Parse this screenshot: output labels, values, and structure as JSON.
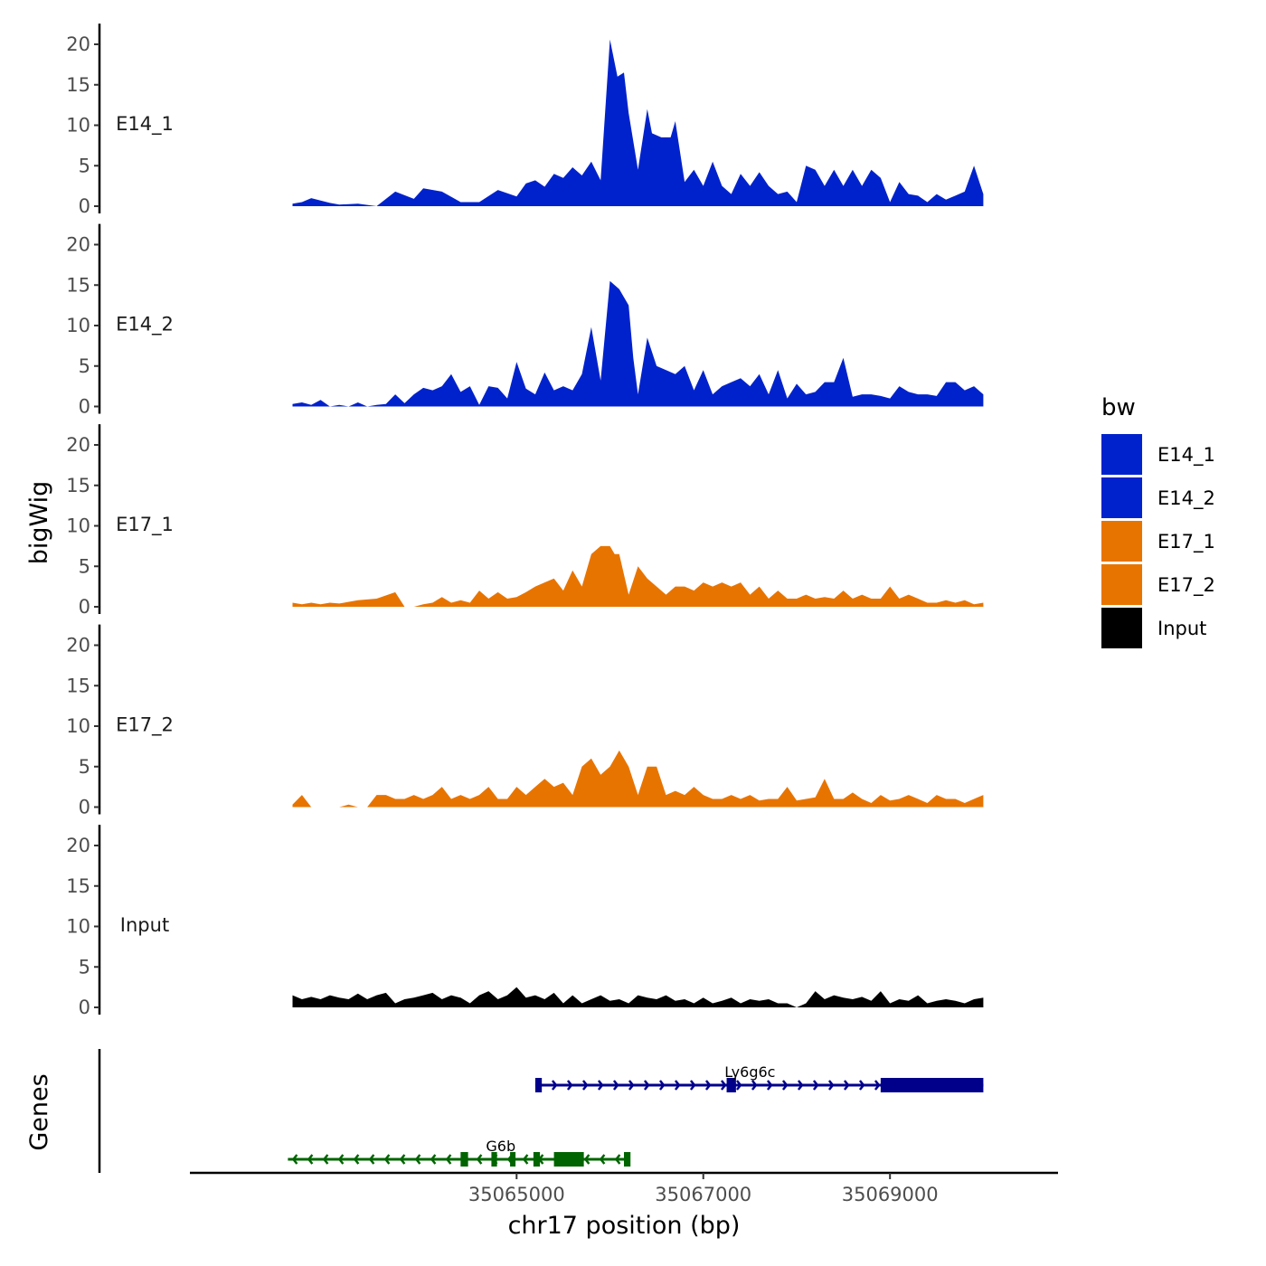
{
  "chart_data": {
    "type": "area",
    "ylabel": "bigWig",
    "xlabel": "chr17 position (bp)",
    "y_ticks": [
      0,
      5,
      10,
      15,
      20
    ],
    "ylim": [
      0,
      22
    ],
    "xlim": [
      35061500,
      35070800
    ],
    "x_ticks": [
      35065000,
      35067000,
      35069000
    ],
    "x_tick_labels": [
      "35065000",
      "35067000",
      "35069000"
    ],
    "colors": {
      "E14_1": "#0022CC",
      "E14_2": "#0022CC",
      "E17_1": "#E87400",
      "E17_2": "#E87400",
      "Input": "#000000"
    },
    "tracks": [
      {
        "name": "E14_1",
        "x": [
          35062600,
          35062700,
          35062800,
          35063000,
          35063100,
          35063300,
          35063500,
          35063700,
          35063900,
          35064000,
          35064200,
          35064400,
          35064600,
          35064800,
          35065000,
          35065100,
          35065200,
          35065300,
          35065400,
          35065500,
          35065600,
          35065700,
          35065800,
          35065900,
          35066000,
          35066080,
          35066150,
          35066200,
          35066300,
          35066400,
          35066450,
          35066550,
          35066650,
          35066700,
          35066800,
          35066900,
          35067000,
          35067100,
          35067200,
          35067300,
          35067400,
          35067500,
          35067600,
          35067700,
          35067800,
          35067900,
          35068000,
          35068100,
          35068200,
          35068300,
          35068400,
          35068500,
          35068600,
          35068700,
          35068800,
          35068900,
          35069000,
          35069100,
          35069200,
          35069300,
          35069400,
          35069500,
          35069600,
          35069700,
          35069800,
          35069900,
          35070000
        ],
        "y": [
          0.3,
          0.5,
          1,
          0.4,
          0.2,
          0.3,
          0,
          1.8,
          0.9,
          2.2,
          1.8,
          0.5,
          0.5,
          2,
          1.2,
          2.8,
          3.2,
          2.4,
          4,
          3.5,
          4.8,
          3.8,
          5.5,
          3.2,
          20.6,
          16,
          16.5,
          11.5,
          4.5,
          12,
          9,
          8.5,
          8.5,
          10.5,
          3,
          4.5,
          2.5,
          5.5,
          2.5,
          1.5,
          4,
          2.5,
          4.2,
          2.5,
          1.5,
          1.8,
          0.5,
          5,
          4.5,
          2.5,
          4.5,
          2.5,
          4.5,
          2.5,
          4.5,
          3.5,
          0.5,
          3,
          1.5,
          1.3,
          0.5,
          1.5,
          0.8,
          1.3,
          1.8,
          5,
          1.5
        ]
      },
      {
        "name": "E14_2",
        "x": [
          35062600,
          35062700,
          35062800,
          35062900,
          35063000,
          35063100,
          35063200,
          35063300,
          35063400,
          35063500,
          35063600,
          35063700,
          35063800,
          35063900,
          35064000,
          35064100,
          35064200,
          35064300,
          35064400,
          35064500,
          35064600,
          35064700,
          35064800,
          35064900,
          35065000,
          35065100,
          35065200,
          35065300,
          35065400,
          35065500,
          35065600,
          35065700,
          35065800,
          35065900,
          35066000,
          35066100,
          35066200,
          35066250,
          35066300,
          35066400,
          35066500,
          35066600,
          35066700,
          35066800,
          35066900,
          35067000,
          35067100,
          35067200,
          35067300,
          35067400,
          35067500,
          35067600,
          35067700,
          35067800,
          35067900,
          35068000,
          35068100,
          35068200,
          35068300,
          35068400,
          35068500,
          35068600,
          35068700,
          35068800,
          35068900,
          35069000,
          35069100,
          35069200,
          35069300,
          35069400,
          35069500,
          35069600,
          35069700,
          35069800,
          35069900,
          35070000
        ],
        "y": [
          0.3,
          0.5,
          0.2,
          0.8,
          0,
          0.2,
          0,
          0.5,
          0,
          0.2,
          0.3,
          1.5,
          0.4,
          1.5,
          2.3,
          2,
          2.5,
          4,
          1.8,
          2.5,
          0.2,
          2.5,
          2.3,
          1,
          5.5,
          2.2,
          1.5,
          4.2,
          2,
          2.5,
          2,
          4,
          9.8,
          3.2,
          15.5,
          14.5,
          12.5,
          6,
          1.5,
          8.5,
          5,
          4.5,
          4,
          5,
          2,
          4.5,
          1.5,
          2.5,
          3,
          3.5,
          2.5,
          4,
          1.5,
          4.5,
          1,
          2.8,
          1.5,
          1.8,
          3,
          3,
          6,
          1.2,
          1.5,
          1.5,
          1.3,
          1,
          2.5,
          1.8,
          1.5,
          1.5,
          1.3,
          3,
          3,
          2,
          2.5,
          1.5
        ]
      },
      {
        "name": "E17_1",
        "x": [
          35062600,
          35062700,
          35062800,
          35062900,
          35063000,
          35063100,
          35063300,
          35063500,
          35063700,
          35063800,
          35063900,
          35064000,
          35064100,
          35064200,
          35064300,
          35064400,
          35064500,
          35064600,
          35064700,
          35064800,
          35064900,
          35065000,
          35065100,
          35065200,
          35065300,
          35065400,
          35065500,
          35065600,
          35065700,
          35065800,
          35065900,
          35066000,
          35066050,
          35066100,
          35066150,
          35066200,
          35066300,
          35066400,
          35066500,
          35066600,
          35066700,
          35066800,
          35066900,
          35067000,
          35067100,
          35067200,
          35067300,
          35067400,
          35067500,
          35067600,
          35067700,
          35067800,
          35067900,
          35068000,
          35068100,
          35068200,
          35068300,
          35068400,
          35068500,
          35068600,
          35068700,
          35068800,
          35068900,
          35069000,
          35069100,
          35069200,
          35069300,
          35069400,
          35069500,
          35069600,
          35069700,
          35069800,
          35069900,
          35070000
        ],
        "y": [
          0.5,
          0.3,
          0.5,
          0.3,
          0.5,
          0.4,
          0.8,
          1,
          1.8,
          0,
          0,
          0.3,
          0.5,
          1.2,
          0.5,
          0.8,
          0.5,
          2,
          1,
          1.8,
          1,
          1.2,
          1.8,
          2.5,
          3,
          3.5,
          2,
          4.5,
          2.5,
          6.5,
          7.5,
          7.5,
          6.5,
          6.5,
          4,
          1.5,
          5,
          3.5,
          2.5,
          1.5,
          2.5,
          2.5,
          2,
          3,
          2.5,
          3,
          2.5,
          3,
          1.5,
          2.5,
          1,
          2,
          1,
          1,
          1.5,
          1,
          1.2,
          1,
          2,
          1,
          1.5,
          1,
          1,
          2.5,
          1,
          1.5,
          1,
          0.5,
          0.5,
          0.8,
          0.5,
          0.8,
          0.3,
          0.5
        ]
      },
      {
        "name": "E17_2",
        "x": [
          35062600,
          35062700,
          35062800,
          35062900,
          35063000,
          35063100,
          35063200,
          35063300,
          35063400,
          35063500,
          35063600,
          35063700,
          35063800,
          35063900,
          35064000,
          35064100,
          35064200,
          35064300,
          35064400,
          35064500,
          35064600,
          35064700,
          35064800,
          35064900,
          35065000,
          35065100,
          35065200,
          35065300,
          35065400,
          35065500,
          35065600,
          35065700,
          35065800,
          35065900,
          35066000,
          35066100,
          35066200,
          35066300,
          35066400,
          35066500,
          35066600,
          35066700,
          35066800,
          35066900,
          35067000,
          35067100,
          35067200,
          35067300,
          35067400,
          35067500,
          35067600,
          35067700,
          35067800,
          35067900,
          35068000,
          35068100,
          35068200,
          35068300,
          35068400,
          35068500,
          35068600,
          35068700,
          35068800,
          35068900,
          35069000,
          35069100,
          35069200,
          35069300,
          35069400,
          35069500,
          35069600,
          35069700,
          35069800,
          35069900,
          35070000
        ],
        "y": [
          0.3,
          1.5,
          0,
          0,
          0,
          0,
          0.3,
          0,
          0,
          1.5,
          1.5,
          1,
          1,
          1.5,
          1,
          1.5,
          2.5,
          1,
          1.5,
          1,
          1.5,
          2.5,
          1,
          1,
          2.5,
          1.5,
          2.5,
          3.5,
          2.5,
          3,
          1.5,
          5,
          6,
          4,
          5,
          7,
          5,
          1.5,
          5,
          5,
          1.5,
          2,
          1.5,
          2.5,
          1.5,
          1,
          1,
          1.5,
          1,
          1.5,
          0.8,
          1,
          1,
          2.5,
          0.8,
          1,
          1.2,
          3.5,
          1,
          1,
          1.8,
          1,
          0.5,
          1.5,
          0.8,
          1,
          1.5,
          1,
          0.5,
          1.5,
          1,
          1,
          0.5,
          1,
          1.5
        ]
      },
      {
        "name": "Input",
        "x": [
          35062600,
          35062700,
          35062800,
          35062900,
          35063000,
          35063100,
          35063200,
          35063300,
          35063400,
          35063500,
          35063600,
          35063700,
          35063800,
          35063900,
          35064000,
          35064100,
          35064200,
          35064300,
          35064400,
          35064500,
          35064600,
          35064700,
          35064800,
          35064900,
          35065000,
          35065100,
          35065200,
          35065300,
          35065400,
          35065500,
          35065600,
          35065700,
          35065800,
          35065900,
          35066000,
          35066100,
          35066200,
          35066300,
          35066400,
          35066500,
          35066600,
          35066700,
          35066800,
          35066900,
          35067000,
          35067100,
          35067200,
          35067300,
          35067400,
          35067500,
          35067600,
          35067700,
          35067800,
          35067900,
          35068000,
          35068100,
          35068200,
          35068300,
          35068400,
          35068500,
          35068600,
          35068700,
          35068800,
          35068900,
          35069000,
          35069100,
          35069200,
          35069300,
          35069400,
          35069500,
          35069600,
          35069700,
          35069800,
          35069900,
          35070000
        ],
        "y": [
          1.5,
          1,
          1.3,
          1,
          1.5,
          1.2,
          1,
          1.7,
          1,
          1.5,
          1.8,
          0.5,
          1,
          1.2,
          1.5,
          1.8,
          1,
          1.5,
          1.2,
          0.5,
          1.5,
          2,
          1,
          1.5,
          2.5,
          1.2,
          1.5,
          1,
          1.8,
          0.5,
          1.5,
          0.5,
          1,
          1.5,
          0.8,
          1,
          0.5,
          1.5,
          1.2,
          1,
          1.5,
          0.8,
          1,
          0.5,
          1.2,
          0.5,
          0.8,
          1.2,
          0.5,
          1,
          0.8,
          1,
          0.5,
          0.5,
          0,
          0.5,
          2,
          1,
          1.5,
          1.2,
          1,
          1.3,
          0.8,
          2,
          0.5,
          1,
          0.8,
          1.5,
          0.5,
          0.8,
          1,
          0.8,
          0.5,
          1,
          1.2
        ]
      }
    ],
    "genes": [
      {
        "name": "Ly6g6c",
        "strand": "+",
        "start": 35065200,
        "end": 35070000,
        "color": "#00008B",
        "exons": [
          [
            35065200,
            35065270
          ],
          [
            35067250,
            35067350
          ],
          [
            35068900,
            35070000
          ]
        ],
        "label_x": 35067500
      },
      {
        "name": "G6b",
        "strand": "-",
        "start": 35062550,
        "end": 35066200,
        "color": "#006400",
        "exons": [
          [
            35064400,
            35064480
          ],
          [
            35064730,
            35064790
          ],
          [
            35064930,
            35064970
          ],
          [
            35065180,
            35065250
          ],
          [
            35065400,
            35065720
          ],
          [
            35066150,
            35066220
          ]
        ],
        "label_x": 35064830
      }
    ],
    "genes_label": "Genes",
    "legend": {
      "title": "bw",
      "entries": [
        "E14_1",
        "E14_2",
        "E17_1",
        "E17_2",
        "Input"
      ]
    }
  }
}
